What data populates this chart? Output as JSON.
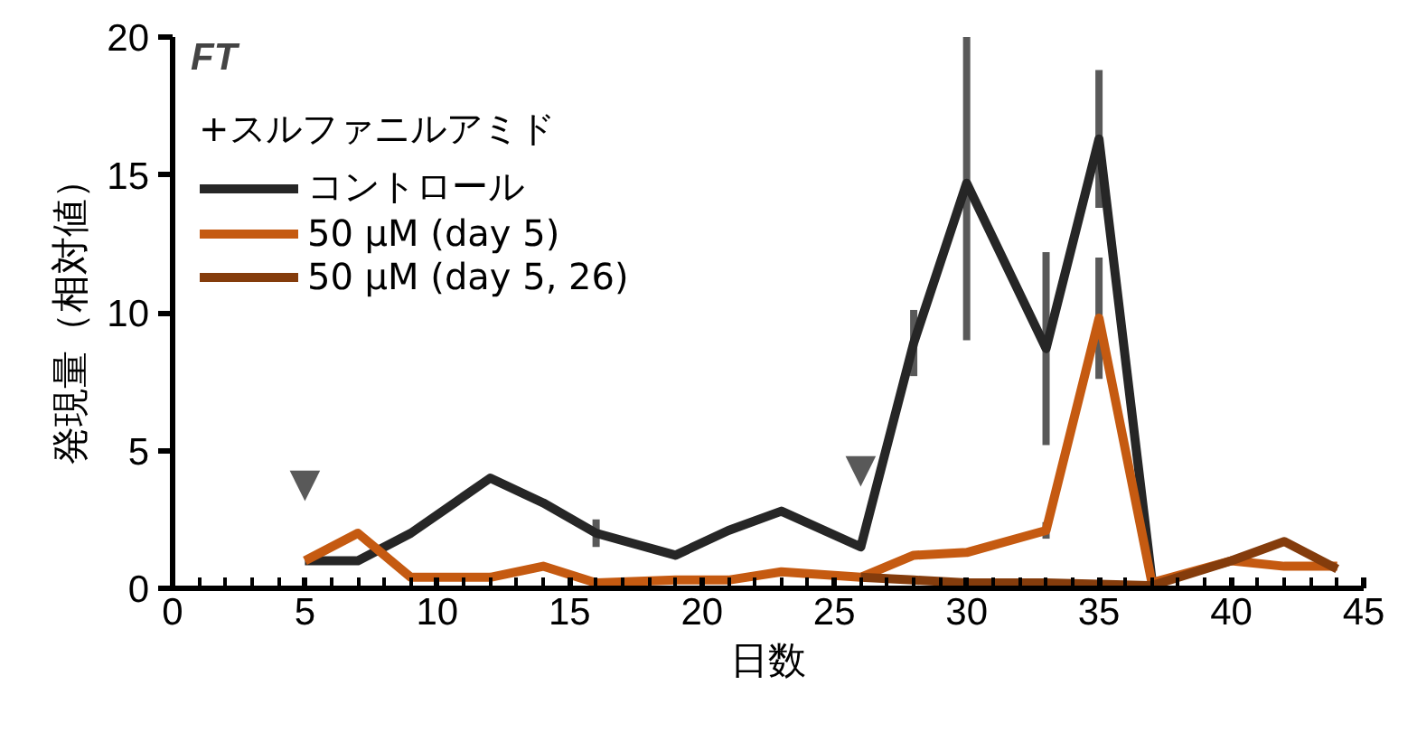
{
  "chart_data": {
    "type": "line",
    "title": "FT",
    "xlabel": "日数",
    "ylabel": "発現量（相対値）",
    "legend_title": "+スルファニルアミド",
    "legend": "top left",
    "grid": false,
    "marker": "none",
    "line_style": "solid",
    "xlim": [
      0,
      45
    ],
    "xticks": [
      0,
      5,
      10,
      15,
      20,
      25,
      30,
      35,
      40,
      45
    ],
    "ylim": [
      0,
      20
    ],
    "yticks": [
      0,
      5,
      10,
      15,
      20
    ],
    "series": [
      {
        "name": "コントロール",
        "color": "#262626",
        "x": [
          5,
          7,
          9,
          12,
          14,
          16,
          19,
          21,
          23,
          26,
          28,
          30,
          33,
          35,
          37
        ],
        "values": [
          1.0,
          1.0,
          2.0,
          4.0,
          3.1,
          2.0,
          1.2,
          2.1,
          2.8,
          1.5,
          8.9,
          14.7,
          8.7,
          16.3,
          0.3
        ],
        "errors": [
          null,
          null,
          null,
          null,
          null,
          0.5,
          null,
          null,
          null,
          null,
          1.2,
          5.7,
          3.5,
          2.5,
          null
        ]
      },
      {
        "name": "50 μM (day 5)",
        "color": "#c55a11",
        "x": [
          5,
          7,
          9,
          12,
          14,
          16,
          19,
          21,
          23,
          26,
          28,
          30,
          33,
          35,
          37,
          40,
          42,
          44
        ],
        "values": [
          1.0,
          2.0,
          0.4,
          0.4,
          0.8,
          0.2,
          0.3,
          0.3,
          0.6,
          0.4,
          1.2,
          1.3,
          2.1,
          9.8,
          0.2,
          1.0,
          0.8,
          0.8
        ],
        "errors": [
          null,
          null,
          null,
          null,
          null,
          null,
          null,
          null,
          null,
          null,
          null,
          null,
          0.3,
          2.2,
          null,
          null,
          null,
          null
        ]
      },
      {
        "name": "50 μM (day 5, 26)",
        "color": "#843c0c",
        "x": [
          26,
          28,
          30,
          33,
          35,
          37,
          40,
          42,
          44
        ],
        "values": [
          0.4,
          0.3,
          0.2,
          0.2,
          0.15,
          0.1,
          1.0,
          1.7,
          0.7
        ]
      }
    ],
    "annotations": [
      {
        "text": "▼",
        "x": 5,
        "y": 1.0
      },
      {
        "text": "▼",
        "x": 26,
        "y": 1.5
      }
    ]
  }
}
